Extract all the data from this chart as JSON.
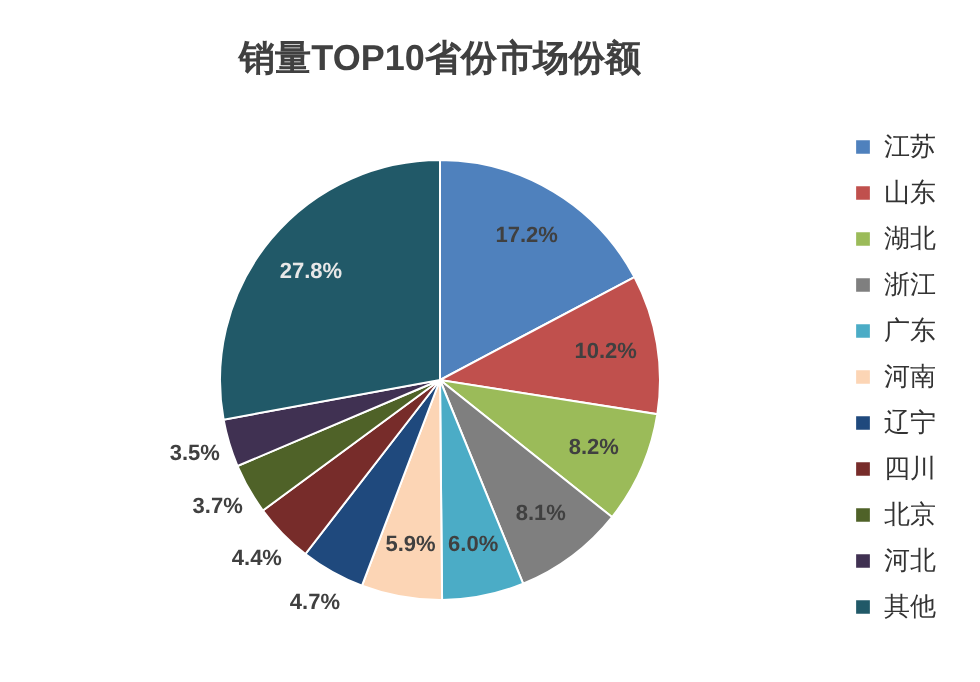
{
  "chart_data": {
    "type": "pie",
    "title": "销量TOP10省份市场份额",
    "categories": [
      "江苏",
      "山东",
      "湖北",
      "浙江",
      "广东",
      "河南",
      "辽宁",
      "四川",
      "北京",
      "河北",
      "其他"
    ],
    "values": [
      17.2,
      10.2,
      8.2,
      8.1,
      6.0,
      5.9,
      4.7,
      4.4,
      3.7,
      3.5,
      27.8
    ],
    "value_labels": [
      "17.2%",
      "10.2%",
      "8.2%",
      "8.1%",
      "6.0%",
      "5.9%",
      "4.7%",
      "4.4%",
      "3.7%",
      "3.5%",
      "27.8%"
    ],
    "colors": [
      "#4f81bd",
      "#c0504d",
      "#9bbb59",
      "#7f7f7f",
      "#4bacc6",
      "#fcd5b5",
      "#1f497d",
      "#772c2a",
      "#4f6228",
      "#403152",
      "#215968"
    ],
    "legend": "right"
  }
}
